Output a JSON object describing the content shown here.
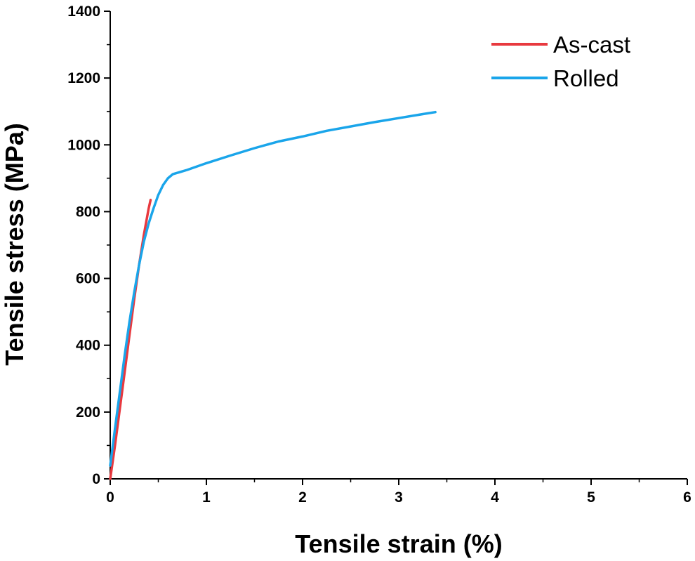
{
  "chart_data": {
    "type": "line",
    "xlabel": "Tensile strain (%)",
    "ylabel": "Tensile stress (MPa)",
    "xlim": [
      0,
      6
    ],
    "ylim": [
      0,
      1400
    ],
    "x_ticks": [
      0,
      1,
      2,
      3,
      4,
      5,
      6
    ],
    "y_ticks": [
      0,
      200,
      400,
      600,
      800,
      1000,
      1200,
      1400
    ],
    "grid": false,
    "legend_position": "top-right",
    "series": [
      {
        "name": "As-cast",
        "color": "#e8393f",
        "x": [
          0,
          0.05,
          0.1,
          0.15,
          0.2,
          0.25,
          0.3,
          0.35,
          0.4,
          0.42
        ],
        "y": [
          0,
          100,
          210,
          320,
          430,
          540,
          640,
          730,
          810,
          835
        ]
      },
      {
        "name": "Rolled",
        "color": "#1aa5ea",
        "x": [
          0,
          0.05,
          0.1,
          0.15,
          0.2,
          0.25,
          0.3,
          0.35,
          0.4,
          0.45,
          0.5,
          0.55,
          0.6,
          0.65,
          0.8,
          1.0,
          1.25,
          1.5,
          1.75,
          2.0,
          2.25,
          2.5,
          2.75,
          3.0,
          3.25,
          3.38
        ],
        "y": [
          40,
          150,
          260,
          370,
          470,
          560,
          640,
          710,
          765,
          810,
          850,
          880,
          900,
          912,
          925,
          945,
          968,
          990,
          1010,
          1025,
          1042,
          1055,
          1068,
          1080,
          1092,
          1098
        ]
      }
    ]
  }
}
